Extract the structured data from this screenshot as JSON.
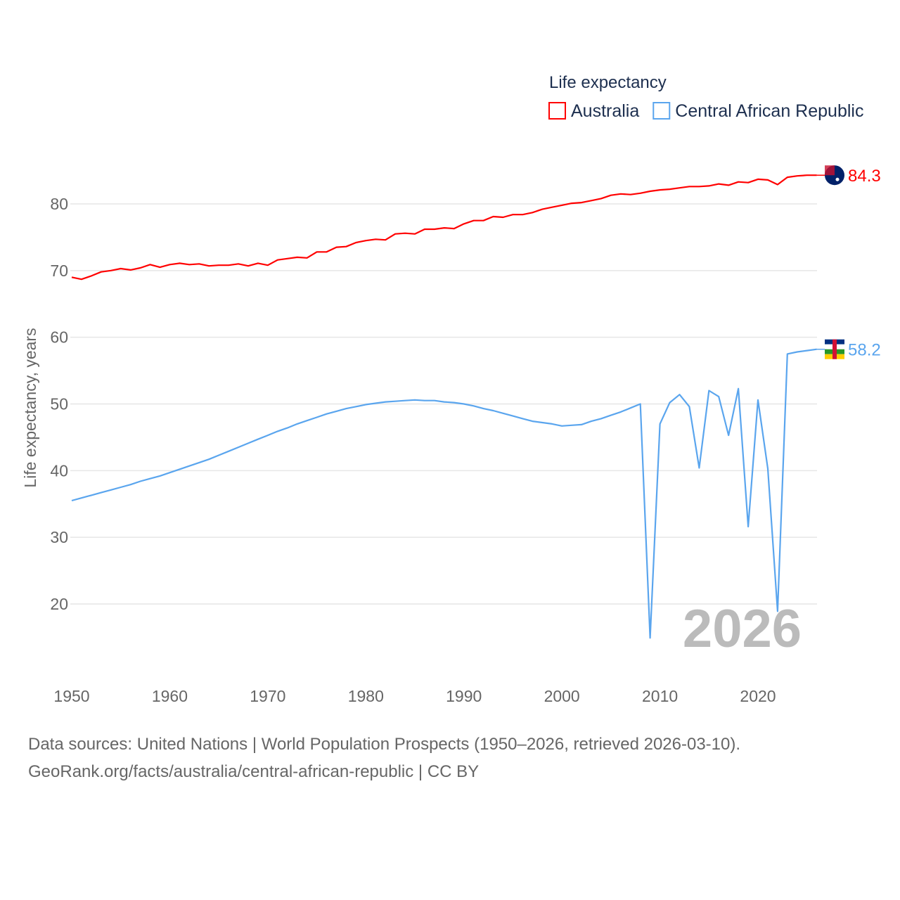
{
  "chart_data": {
    "type": "line",
    "legend_title": "Life expectancy",
    "legend_position": "top-right",
    "ylabel": "Life expectancy, years",
    "xlabel": "",
    "xlim": [
      1950,
      2026
    ],
    "ylim": [
      10,
      90
    ],
    "yticks": [
      20,
      30,
      40,
      50,
      60,
      70,
      80
    ],
    "xticks": [
      1950,
      1960,
      1970,
      1980,
      1990,
      2000,
      2010,
      2020
    ],
    "year_watermark": "2026",
    "grid": true,
    "x": [
      1950,
      1951,
      1952,
      1953,
      1954,
      1955,
      1956,
      1957,
      1958,
      1959,
      1960,
      1961,
      1962,
      1963,
      1964,
      1965,
      1966,
      1967,
      1968,
      1969,
      1970,
      1971,
      1972,
      1973,
      1974,
      1975,
      1976,
      1977,
      1978,
      1979,
      1980,
      1981,
      1982,
      1983,
      1984,
      1985,
      1986,
      1987,
      1988,
      1989,
      1990,
      1991,
      1992,
      1993,
      1994,
      1995,
      1996,
      1997,
      1998,
      1999,
      2000,
      2001,
      2002,
      2003,
      2004,
      2005,
      2006,
      2007,
      2008,
      2009,
      2010,
      2011,
      2012,
      2013,
      2014,
      2015,
      2016,
      2017,
      2018,
      2019,
      2020,
      2021,
      2022,
      2023,
      2024,
      2025,
      2026
    ],
    "series": [
      {
        "name": "Australia",
        "color": "#ff0000",
        "end_label": "84.3",
        "values": [
          69.0,
          68.7,
          69.2,
          69.8,
          70.0,
          70.3,
          70.1,
          70.4,
          70.9,
          70.5,
          70.9,
          71.1,
          70.9,
          71.0,
          70.7,
          70.8,
          70.8,
          71.0,
          70.7,
          71.1,
          70.8,
          71.6,
          71.8,
          72.0,
          71.9,
          72.8,
          72.8,
          73.5,
          73.6,
          74.2,
          74.5,
          74.7,
          74.6,
          75.5,
          75.6,
          75.5,
          76.2,
          76.2,
          76.4,
          76.3,
          77.0,
          77.5,
          77.5,
          78.1,
          78.0,
          78.4,
          78.4,
          78.7,
          79.2,
          79.5,
          79.8,
          80.1,
          80.2,
          80.5,
          80.8,
          81.3,
          81.5,
          81.4,
          81.6,
          81.9,
          82.1,
          82.2,
          82.4,
          82.6,
          82.6,
          82.7,
          83.0,
          82.8,
          83.3,
          83.2,
          83.7,
          83.6,
          82.9,
          84.0,
          84.2,
          84.3,
          84.3
        ]
      },
      {
        "name": "Central African Republic",
        "color": "#5aa5ee",
        "end_label": "58.2",
        "values": [
          35.5,
          35.9,
          36.3,
          36.7,
          37.1,
          37.5,
          37.9,
          38.4,
          38.8,
          39.2,
          39.7,
          40.2,
          40.7,
          41.2,
          41.7,
          42.3,
          42.9,
          43.5,
          44.1,
          44.7,
          45.3,
          45.9,
          46.4,
          47.0,
          47.5,
          48.0,
          48.5,
          48.9,
          49.3,
          49.6,
          49.9,
          50.1,
          50.3,
          50.4,
          50.5,
          50.6,
          50.5,
          50.5,
          50.3,
          50.2,
          50.0,
          49.7,
          49.3,
          49.0,
          48.6,
          48.2,
          47.8,
          47.4,
          47.2,
          47.0,
          46.7,
          46.8,
          46.9,
          47.4,
          47.8,
          48.3,
          48.8,
          49.4,
          50.0,
          14.9,
          47.0,
          50.2,
          51.4,
          49.6,
          40.4,
          52.0,
          51.1,
          45.3,
          52.3,
          31.6,
          50.6,
          40.3,
          18.9,
          57.5,
          57.8,
          58.0,
          58.2
        ]
      }
    ]
  },
  "footer": {
    "sources": "Data sources: United Nations | World Population Prospects (1950–2026, retrieved 2026-03-10).",
    "link": "GeoRank.org/facts/australia/central-african-republic | CC BY"
  }
}
